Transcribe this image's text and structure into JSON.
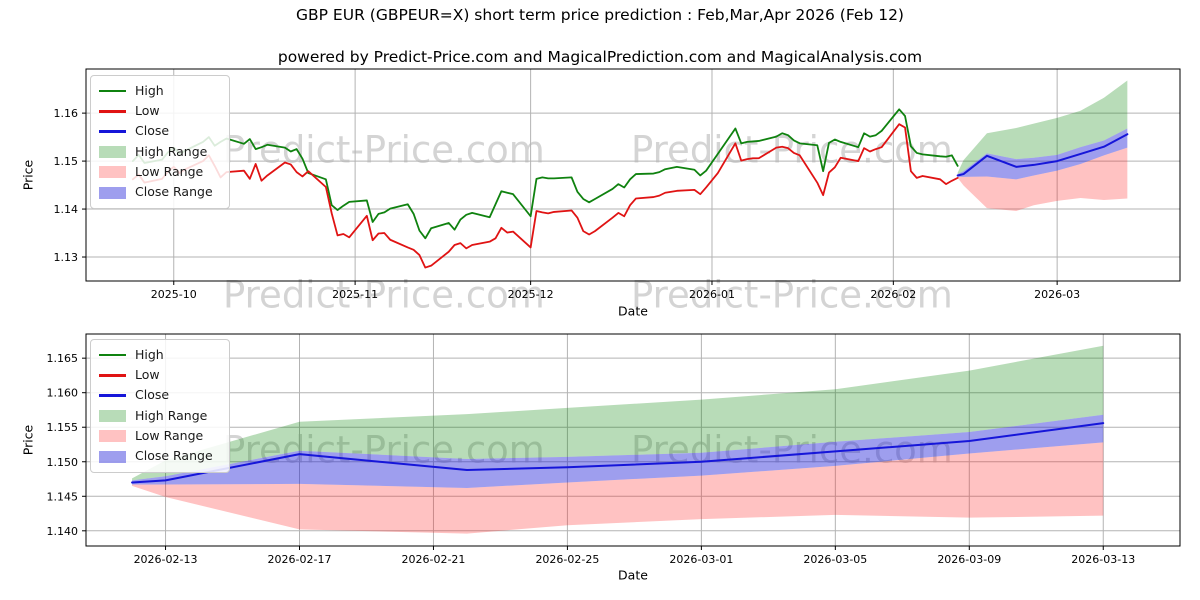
{
  "figure": {
    "title": "GBP EUR (GBPEUR=X) short term price prediction : Feb,Mar,Apr 2026 (Feb 12)",
    "subtitle": "powered by Predict-Price.com and MagicalPrediction.com and MagicalAnalysis.com",
    "watermark_text": "Predict-Price.com"
  },
  "colors": {
    "high_line": "#0f820f",
    "low_line": "#e01313",
    "close_line": "#1616d9",
    "high_fill": "rgba(0,128,0,0.28)",
    "low_fill": "rgba(255,30,30,0.27)",
    "close_fill": "rgba(25,25,215,0.42)",
    "grid": "#b3b3b3",
    "spine": "#000000",
    "watermark": "#d4d4d4"
  },
  "legend": {
    "items": [
      {
        "label": "High",
        "type": "line",
        "color": "#0f820f"
      },
      {
        "label": "Low",
        "type": "line",
        "color": "#e01313"
      },
      {
        "label": "Close",
        "type": "line",
        "color": "#1616d9"
      },
      {
        "label": "High Range",
        "type": "patch",
        "color": "rgba(0,128,0,0.28)"
      },
      {
        "label": "Low Range",
        "type": "patch",
        "color": "rgba(255,30,30,0.27)"
      },
      {
        "label": "Close Range",
        "type": "patch",
        "color": "rgba(25,25,215,0.42)"
      }
    ]
  },
  "chart_data": [
    {
      "type": "line",
      "name": "history-and-forecast",
      "xlabel": "Date",
      "ylabel": "Price",
      "xlim": [
        "2025-09-16",
        "2026-03-22"
      ],
      "ylim": [
        1.125,
        1.1692
      ],
      "grid": true,
      "legend_position": "upper-left",
      "xticks": {
        "dates": [
          "2025-10-01",
          "2025-11-01",
          "2025-12-01",
          "2026-01-01",
          "2026-02-01",
          "2026-03-01"
        ],
        "labels": [
          "2025-10",
          "2025-11",
          "2025-12",
          "2026-01",
          "2026-02",
          "2026-03"
        ]
      },
      "yticks": {
        "values": [
          1.13,
          1.14,
          1.15,
          1.16
        ],
        "labels": [
          "1.13",
          "1.14",
          "1.15",
          "1.16"
        ]
      },
      "history": {
        "dates": [
          "2025-09-24",
          "2025-09-25",
          "2025-09-26",
          "2025-09-29",
          "2025-09-30",
          "2025-10-01",
          "2025-10-02",
          "2025-10-03",
          "2025-10-06",
          "2025-10-07",
          "2025-10-08",
          "2025-10-09",
          "2025-10-10",
          "2025-10-13",
          "2025-10-14",
          "2025-10-15",
          "2025-10-16",
          "2025-10-17",
          "2025-10-20",
          "2025-10-21",
          "2025-10-22",
          "2025-10-23",
          "2025-10-24",
          "2025-10-27",
          "2025-10-28",
          "2025-10-29",
          "2025-10-30",
          "2025-10-31",
          "2025-11-03",
          "2025-11-04",
          "2025-11-05",
          "2025-11-06",
          "2025-11-07",
          "2025-11-10",
          "2025-11-11",
          "2025-11-12",
          "2025-11-13",
          "2025-11-14",
          "2025-11-17",
          "2025-11-18",
          "2025-11-19",
          "2025-11-20",
          "2025-11-21",
          "2025-11-24",
          "2025-11-25",
          "2025-11-26",
          "2025-11-27",
          "2025-11-28",
          "2025-12-01",
          "2025-12-02",
          "2025-12-03",
          "2025-12-04",
          "2025-12-05",
          "2025-12-08",
          "2025-12-09",
          "2025-12-10",
          "2025-12-11",
          "2025-12-12",
          "2025-12-15",
          "2025-12-16",
          "2025-12-17",
          "2025-12-18",
          "2025-12-19",
          "2025-12-22",
          "2025-12-23",
          "2025-12-24",
          "2025-12-26",
          "2025-12-29",
          "2025-12-30",
          "2025-12-31",
          "2026-01-02",
          "2026-01-05",
          "2026-01-06",
          "2026-01-07",
          "2026-01-08",
          "2026-01-09",
          "2026-01-12",
          "2026-01-13",
          "2026-01-14",
          "2026-01-15",
          "2026-01-16",
          "2026-01-19",
          "2026-01-20",
          "2026-01-21",
          "2026-01-22",
          "2026-01-23",
          "2026-01-26",
          "2026-01-27",
          "2026-01-28",
          "2026-01-29",
          "2026-01-30",
          "2026-02-02",
          "2026-02-03",
          "2026-02-04",
          "2026-02-05",
          "2026-02-06",
          "2026-02-09",
          "2026-02-10",
          "2026-02-11",
          "2026-02-12"
        ],
        "high": [
          1.15,
          1.1513,
          1.1496,
          1.1503,
          1.1518,
          1.1528,
          1.1515,
          1.1522,
          1.154,
          1.155,
          1.1532,
          1.154,
          1.1547,
          1.1536,
          1.1546,
          1.1525,
          1.1529,
          1.1534,
          1.1528,
          1.152,
          1.1525,
          1.1505,
          1.1475,
          1.1462,
          1.1408,
          1.1398,
          1.1407,
          1.1415,
          1.1418,
          1.1373,
          1.139,
          1.1393,
          1.1401,
          1.141,
          1.139,
          1.1355,
          1.1339,
          1.136,
          1.1371,
          1.1357,
          1.1378,
          1.1388,
          1.1392,
          1.1383,
          1.141,
          1.1437,
          1.1434,
          1.1431,
          1.1385,
          1.1463,
          1.1466,
          1.1464,
          1.1464,
          1.1466,
          1.1436,
          1.1421,
          1.1414,
          1.1421,
          1.1442,
          1.1452,
          1.1445,
          1.1462,
          1.1473,
          1.1474,
          1.1477,
          1.1483,
          1.1488,
          1.1482,
          1.147,
          1.148,
          1.1515,
          1.1568,
          1.1537,
          1.154,
          1.1541,
          1.1542,
          1.1551,
          1.1558,
          1.1554,
          1.1543,
          1.1537,
          1.1533,
          1.1479,
          1.1538,
          1.1545,
          1.154,
          1.1529,
          1.1558,
          1.1551,
          1.1554,
          1.1563,
          1.1608,
          1.1594,
          1.1531,
          1.1517,
          1.1514,
          1.151,
          1.1509,
          1.1512,
          1.149
        ],
        "low": [
          1.1462,
          1.1472,
          1.1455,
          1.1463,
          1.1478,
          1.1488,
          1.1475,
          1.1483,
          1.15,
          1.1512,
          1.149,
          1.1466,
          1.1477,
          1.148,
          1.1463,
          1.1494,
          1.1459,
          1.147,
          1.1497,
          1.1493,
          1.1477,
          1.1468,
          1.1479,
          1.1446,
          1.1391,
          1.1345,
          1.1348,
          1.1341,
          1.1386,
          1.1335,
          1.1349,
          1.135,
          1.1336,
          1.132,
          1.1315,
          1.1304,
          1.1278,
          1.1282,
          1.1311,
          1.1325,
          1.1329,
          1.1318,
          1.1325,
          1.1332,
          1.1339,
          1.1361,
          1.1351,
          1.1353,
          1.132,
          1.1396,
          1.1393,
          1.1391,
          1.1394,
          1.1397,
          1.1382,
          1.1354,
          1.1347,
          1.1354,
          1.1382,
          1.1392,
          1.1385,
          1.1408,
          1.1422,
          1.1425,
          1.1428,
          1.1434,
          1.1438,
          1.144,
          1.1431,
          1.1445,
          1.1475,
          1.1537,
          1.1501,
          1.1504,
          1.1506,
          1.1506,
          1.1528,
          1.153,
          1.1527,
          1.1517,
          1.1512,
          1.1455,
          1.1429,
          1.1476,
          1.1487,
          1.1507,
          1.15,
          1.1527,
          1.152,
          1.1525,
          1.1529,
          1.1577,
          1.157,
          1.1479,
          1.1465,
          1.1469,
          1.1462,
          1.1452,
          1.1459,
          1.1465
        ]
      },
      "forecast": {
        "dates": [
          "2026-02-12",
          "2026-02-13",
          "2026-02-17",
          "2026-02-22",
          "2026-02-25",
          "2026-03-01",
          "2026-03-05",
          "2026-03-09",
          "2026-03-13"
        ],
        "close": [
          1.147,
          1.1473,
          1.1511,
          1.1488,
          1.1492,
          1.15,
          1.1515,
          1.153,
          1.1556
        ],
        "close_upper": [
          1.1473,
          1.1479,
          1.1516,
          1.1504,
          1.1507,
          1.1513,
          1.1529,
          1.1543,
          1.1568
        ],
        "close_lower": [
          1.1467,
          1.1467,
          1.1468,
          1.1462,
          1.147,
          1.148,
          1.1494,
          1.1512,
          1.1528
        ],
        "high_upper": [
          1.1476,
          1.1502,
          1.1558,
          1.1569,
          1.1578,
          1.159,
          1.1605,
          1.1632,
          1.1668
        ],
        "low_lower": [
          1.1465,
          1.1449,
          1.1402,
          1.1396,
          1.1408,
          1.1417,
          1.1423,
          1.1419,
          1.1422
        ]
      }
    },
    {
      "type": "line",
      "name": "forecast-zoom",
      "xlabel": "Date",
      "ylabel": "Price",
      "xlim": [
        "2026-02-10T15:00:00",
        "2026-03-15T07:00:00"
      ],
      "ylim": [
        1.1378,
        1.1685
      ],
      "grid": true,
      "legend_position": "upper-left",
      "xticks": {
        "dates": [
          "2026-02-13",
          "2026-02-17",
          "2026-02-21",
          "2026-02-25",
          "2026-03-01",
          "2026-03-05",
          "2026-03-09",
          "2026-03-13"
        ],
        "labels": [
          "2026-02-13",
          "2026-02-17",
          "2026-02-21",
          "2026-02-25",
          "2026-03-01",
          "2026-03-05",
          "2026-03-09",
          "2026-03-13"
        ]
      },
      "yticks": {
        "values": [
          1.14,
          1.145,
          1.15,
          1.155,
          1.16,
          1.165
        ],
        "labels": [
          "1.140",
          "1.145",
          "1.150",
          "1.155",
          "1.160",
          "1.165"
        ]
      },
      "forecast": {
        "dates": [
          "2026-02-12",
          "2026-02-13",
          "2026-02-17",
          "2026-02-22",
          "2026-02-25",
          "2026-03-01",
          "2026-03-05",
          "2026-03-09",
          "2026-03-13"
        ],
        "close": [
          1.147,
          1.1473,
          1.1511,
          1.1488,
          1.1492,
          1.15,
          1.1515,
          1.153,
          1.1556
        ],
        "close_upper": [
          1.1473,
          1.1479,
          1.1516,
          1.1504,
          1.1507,
          1.1513,
          1.1529,
          1.1543,
          1.1568
        ],
        "close_lower": [
          1.1467,
          1.1467,
          1.1468,
          1.1462,
          1.147,
          1.148,
          1.1494,
          1.1512,
          1.1528
        ],
        "high_upper": [
          1.1476,
          1.1502,
          1.1558,
          1.1569,
          1.1578,
          1.159,
          1.1605,
          1.1632,
          1.1668
        ],
        "low_lower": [
          1.1465,
          1.1449,
          1.1402,
          1.1396,
          1.1408,
          1.1417,
          1.1423,
          1.1419,
          1.1422
        ]
      }
    }
  ]
}
